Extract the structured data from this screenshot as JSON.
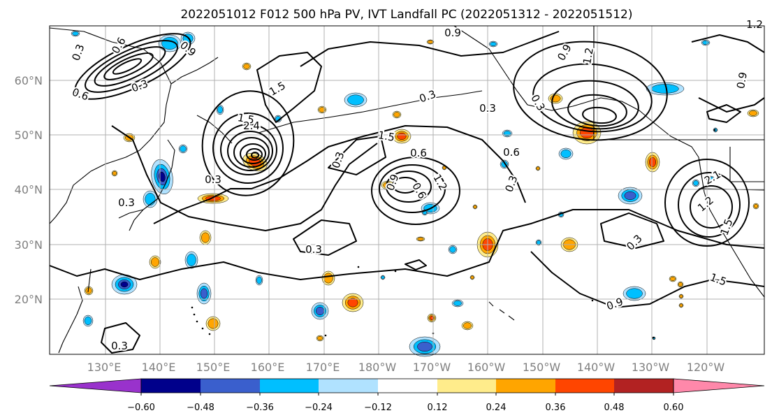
{
  "title": "2022051012 F012 500 hPa PV, IVT Landfall PC (2022051312 - 2022051512)",
  "lat_labels": [
    "60°N",
    "50°N",
    "40°N",
    "30°N",
    "20°N"
  ],
  "lon_labels": [
    "130°E",
    "140°E",
    "150°E",
    "160°E",
    "170°E",
    "180°W",
    "170°W",
    "160°W",
    "150°W",
    "140°W",
    "130°W",
    "120°W"
  ],
  "colorbar": {
    "colors": [
      "#9932cc",
      "#00008b",
      "#3a5fcd",
      "#00bfff",
      "#b0e2ff",
      "#ffffff",
      "#ffec8b",
      "#ffa500",
      "#ff4500",
      "#b22222",
      "#ff88aa"
    ],
    "tick_labels": [
      "−0.60",
      "−0.48",
      "−0.36",
      "−0.24",
      "−0.12",
      "0.12",
      "0.24",
      "0.36",
      "0.48",
      "0.60"
    ]
  },
  "contour_labels": [
    "0.9",
    "0.3",
    "0.3",
    "1.5",
    "0.3",
    "0.6",
    "0.3",
    "0.3",
    "0.3",
    "0.3",
    "0.6",
    "0.3",
    "0.3",
    "1.5",
    "0.9",
    "1.5",
    "1.2",
    "2.1",
    "0.9",
    "1.2",
    "0.6",
    "0.9",
    "1.2",
    "0.6",
    "0.3",
    "0.3",
    "0.6",
    "0.9",
    "1.5",
    "2.4",
    "1.5",
    "0.3",
    "0.9",
    "1.2"
  ]
}
